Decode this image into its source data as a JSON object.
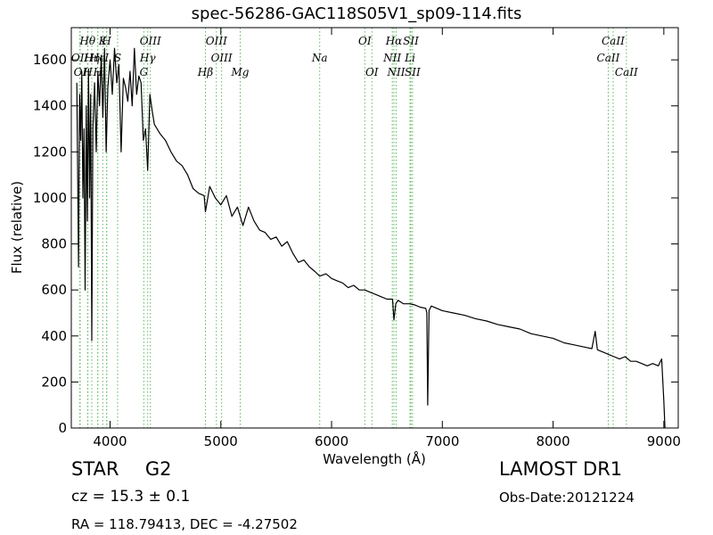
{
  "header": {
    "title": "spec-56286-GAC118S05V1_sp09-114.fits"
  },
  "info": {
    "object_class": "STAR",
    "subclass": "G2",
    "cz_text": "cz = 15.3 ± 0.1",
    "radec_text": "RA = 118.79413, DEC = -4.27502",
    "survey": "LAMOST DR1",
    "obs_date": "Obs-Date:20121224"
  },
  "chart_data": {
    "type": "line",
    "title": "spec-56286-GAC118S05V1_sp09-114.fits",
    "xlabel": "Wavelength (Å)",
    "ylabel": "Flux (relative)",
    "xlim": [
      3650,
      9130
    ],
    "ylim": [
      0,
      1740
    ],
    "xticks": [
      4000,
      5000,
      6000,
      7000,
      8000,
      9000
    ],
    "yticks": [
      0,
      200,
      400,
      600,
      800,
      1000,
      1200,
      1400,
      1600
    ],
    "grid": false,
    "line_color": "#000000",
    "marker_line_color": "#5cb85c",
    "series": [
      {
        "x": [
          3700,
          3715,
          3725,
          3735,
          3745,
          3755,
          3765,
          3775,
          3785,
          3795,
          3805,
          3815,
          3825,
          3835,
          3845,
          3860,
          3875,
          3890,
          3905,
          3920,
          3935,
          3950,
          3965,
          3980,
          4000,
          4020,
          4040,
          4060,
          4080,
          4100,
          4120,
          4140,
          4160,
          4180,
          4200,
          4220,
          4240,
          4260,
          4280,
          4300,
          4320,
          4340,
          4360,
          4380,
          4400,
          4450,
          4500,
          4550,
          4600,
          4650,
          4700,
          4750,
          4800,
          4850,
          4861,
          4900,
          4950,
          5000,
          5050,
          5100,
          5150,
          5200,
          5250,
          5300,
          5350,
          5400,
          5450,
          5500,
          5550,
          5600,
          5650,
          5700,
          5750,
          5800,
          5850,
          5893,
          5950,
          6000,
          6050,
          6100,
          6150,
          6200,
          6250,
          6300,
          6350,
          6400,
          6450,
          6500,
          6550,
          6563,
          6580,
          6600,
          6650,
          6700,
          6750,
          6800,
          6850,
          6860,
          6868,
          6880,
          6900,
          6950,
          7000,
          7100,
          7200,
          7300,
          7400,
          7500,
          7600,
          7700,
          7800,
          7900,
          8000,
          8100,
          8200,
          8300,
          8350,
          8380,
          8400,
          8450,
          8500,
          8550,
          8600,
          8650,
          8700,
          8750,
          8800,
          8850,
          8900,
          8950,
          8980,
          9000,
          9010
        ],
        "y": [
          1500,
          700,
          1450,
          1250,
          1550,
          1000,
          1300,
          600,
          1400,
          900,
          1560,
          1000,
          1450,
          380,
          1300,
          1500,
          1200,
          1550,
          1400,
          1620,
          1350,
          1650,
          1200,
          1480,
          1600,
          1450,
          1650,
          1500,
          1580,
          1200,
          1520,
          1480,
          1420,
          1550,
          1400,
          1650,
          1450,
          1530,
          1500,
          1250,
          1300,
          1120,
          1450,
          1380,
          1320,
          1280,
          1250,
          1200,
          1160,
          1140,
          1100,
          1040,
          1020,
          1010,
          940,
          1050,
          1000,
          970,
          1010,
          920,
          960,
          880,
          960,
          900,
          860,
          850,
          820,
          830,
          790,
          810,
          760,
          720,
          730,
          700,
          680,
          660,
          670,
          650,
          640,
          630,
          610,
          620,
          600,
          600,
          590,
          580,
          570,
          560,
          560,
          470,
          540,
          555,
          540,
          540,
          535,
          525,
          520,
          500,
          100,
          510,
          530,
          520,
          510,
          500,
          490,
          475,
          465,
          450,
          440,
          430,
          410,
          400,
          390,
          370,
          360,
          350,
          345,
          420,
          340,
          330,
          320,
          310,
          300,
          310,
          290,
          290,
          280,
          270,
          280,
          270,
          300,
          120,
          0
        ]
      }
    ],
    "lines_top": [
      {
        "label": "Hθ",
        "x": 3797
      },
      {
        "label": "K",
        "x": 3934
      },
      {
        "label": "H",
        "x": 3969
      },
      {
        "label": "OIII",
        "x": 4364
      },
      {
        "label": "OIII",
        "x": 4960
      },
      {
        "label": "OI",
        "x": 6300
      },
      {
        "label": "Hα",
        "x": 6563
      },
      {
        "label": "SII",
        "x": 6716
      },
      {
        "label": "CaII",
        "x": 8542
      }
    ],
    "lines_second": [
      {
        "label": "OII",
        "x": 3727
      },
      {
        "label": "Hη",
        "x": 3835
      },
      {
        "label": "He",
        "x": 3889
      },
      {
        "label": "I",
        "x": 3970
      },
      {
        "label": "S",
        "x": 4068
      },
      {
        "label": "Hγ",
        "x": 4340
      },
      {
        "label": "OIII",
        "x": 5007
      },
      {
        "label": "Na",
        "x": 5893
      },
      {
        "label": "NII",
        "x": 6548
      },
      {
        "label": "Li",
        "x": 6708
      },
      {
        "label": "CaII",
        "x": 8498
      }
    ],
    "lines_third": [
      {
        "label": "OI",
        "x": 3730
      },
      {
        "label": "H",
        "x": 3800
      },
      {
        "label": "H",
        "x": 3889
      },
      {
        "label": "G",
        "x": 4305
      },
      {
        "label": "Hβ",
        "x": 4861
      },
      {
        "label": "Mg",
        "x": 5175
      },
      {
        "label": "OI",
        "x": 6364
      },
      {
        "label": "NII",
        "x": 6583
      },
      {
        "label": "SII",
        "x": 6731
      },
      {
        "label": "CaII",
        "x": 8662
      }
    ]
  }
}
